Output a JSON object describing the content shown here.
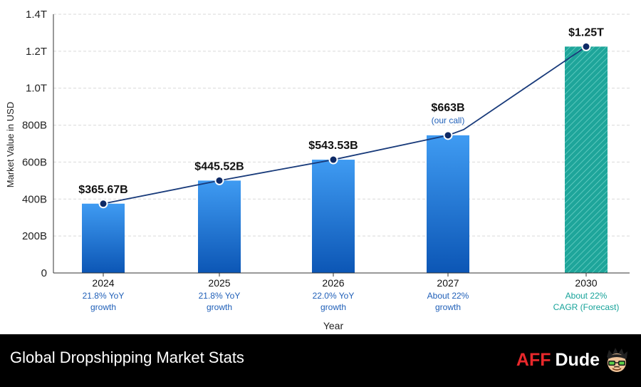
{
  "chart_data": {
    "type": "bar",
    "xlabel": "Year",
    "ylabel": "Market Value in USD",
    "ylim": [
      0,
      1400
    ],
    "yticks": [
      {
        "value": 0,
        "label": "0"
      },
      {
        "value": 200,
        "label": "200B"
      },
      {
        "value": 400,
        "label": "400B"
      },
      {
        "value": 600,
        "label": "600B"
      },
      {
        "value": 800,
        "label": "800B"
      },
      {
        "value": 1000,
        "label": "1.0T"
      },
      {
        "value": 1200,
        "label": "1.2T"
      },
      {
        "value": 1400,
        "label": "1.4T"
      }
    ],
    "categories": [
      "2024",
      "2025",
      "2026",
      "2027",
      "2030"
    ],
    "values": [
      375,
      500,
      613,
      745,
      1225
    ],
    "line_values": [
      365.67,
      445.52,
      543.53,
      663,
      1250
    ],
    "value_labels": [
      "$365.67B",
      "$445.52B",
      "$543.53B",
      "$663B",
      "$1.25T"
    ],
    "value_notes": [
      "",
      "",
      "",
      "(our call)",
      ""
    ],
    "growth_labels": [
      [
        "21.8% YoY",
        "growth"
      ],
      [
        "21.8% YoY",
        "growth"
      ],
      [
        "22.0% YoY",
        "growth"
      ],
      [
        "About 22%",
        "growth"
      ],
      [
        "About 22%",
        "CAGR (Forecast)"
      ]
    ],
    "forecast_index": 4,
    "grid": true,
    "colors": {
      "bar_top": "#3f9bf2",
      "bar_bottom": "#0c56b5",
      "forecast_bar": "#1ea59a",
      "line": "#183a7a",
      "point": "#0e2a66",
      "growth_text": "#1f5fb8",
      "forecast_text": "#17a39a"
    }
  },
  "footer": {
    "title": "Global Dropshipping Market Stats",
    "brand_aff": "AFF",
    "brand_dude": "Dude"
  }
}
